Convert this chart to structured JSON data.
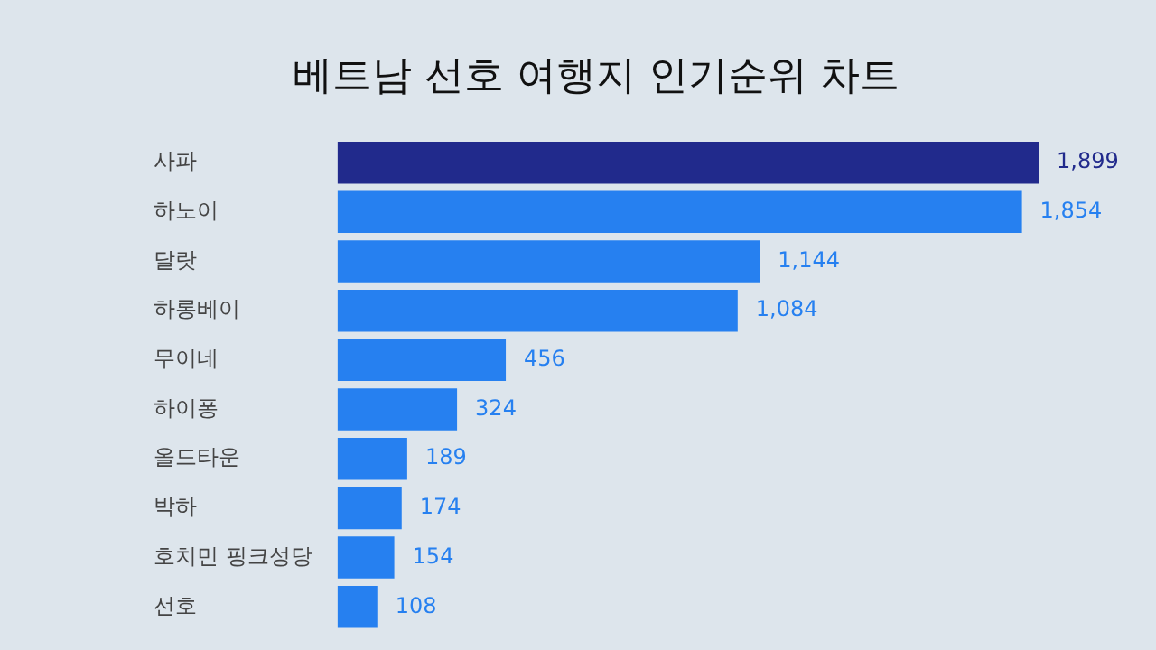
{
  "chart_data": {
    "type": "bar",
    "orientation": "horizontal",
    "title": "베트남 선호 여행지 인기순위 차트",
    "categories": [
      "사파",
      "하노이",
      "달랏",
      "하롱베이",
      "무이네",
      "하이퐁",
      "올드타운",
      "박하",
      "호치민 핑크성당",
      "선호"
    ],
    "values": [
      1899,
      1854,
      1144,
      1084,
      456,
      324,
      189,
      174,
      154,
      108
    ],
    "colors": [
      "#212a8c",
      "#2680f0",
      "#2680f0",
      "#2680f0",
      "#2680f0",
      "#2680f0",
      "#2680f0",
      "#2680f0",
      "#2680f0",
      "#2680f0"
    ],
    "value_labels": [
      "1,899",
      "1,854",
      "1,144",
      "1,084",
      "456",
      "324",
      "189",
      "174",
      "154",
      "108"
    ]
  }
}
